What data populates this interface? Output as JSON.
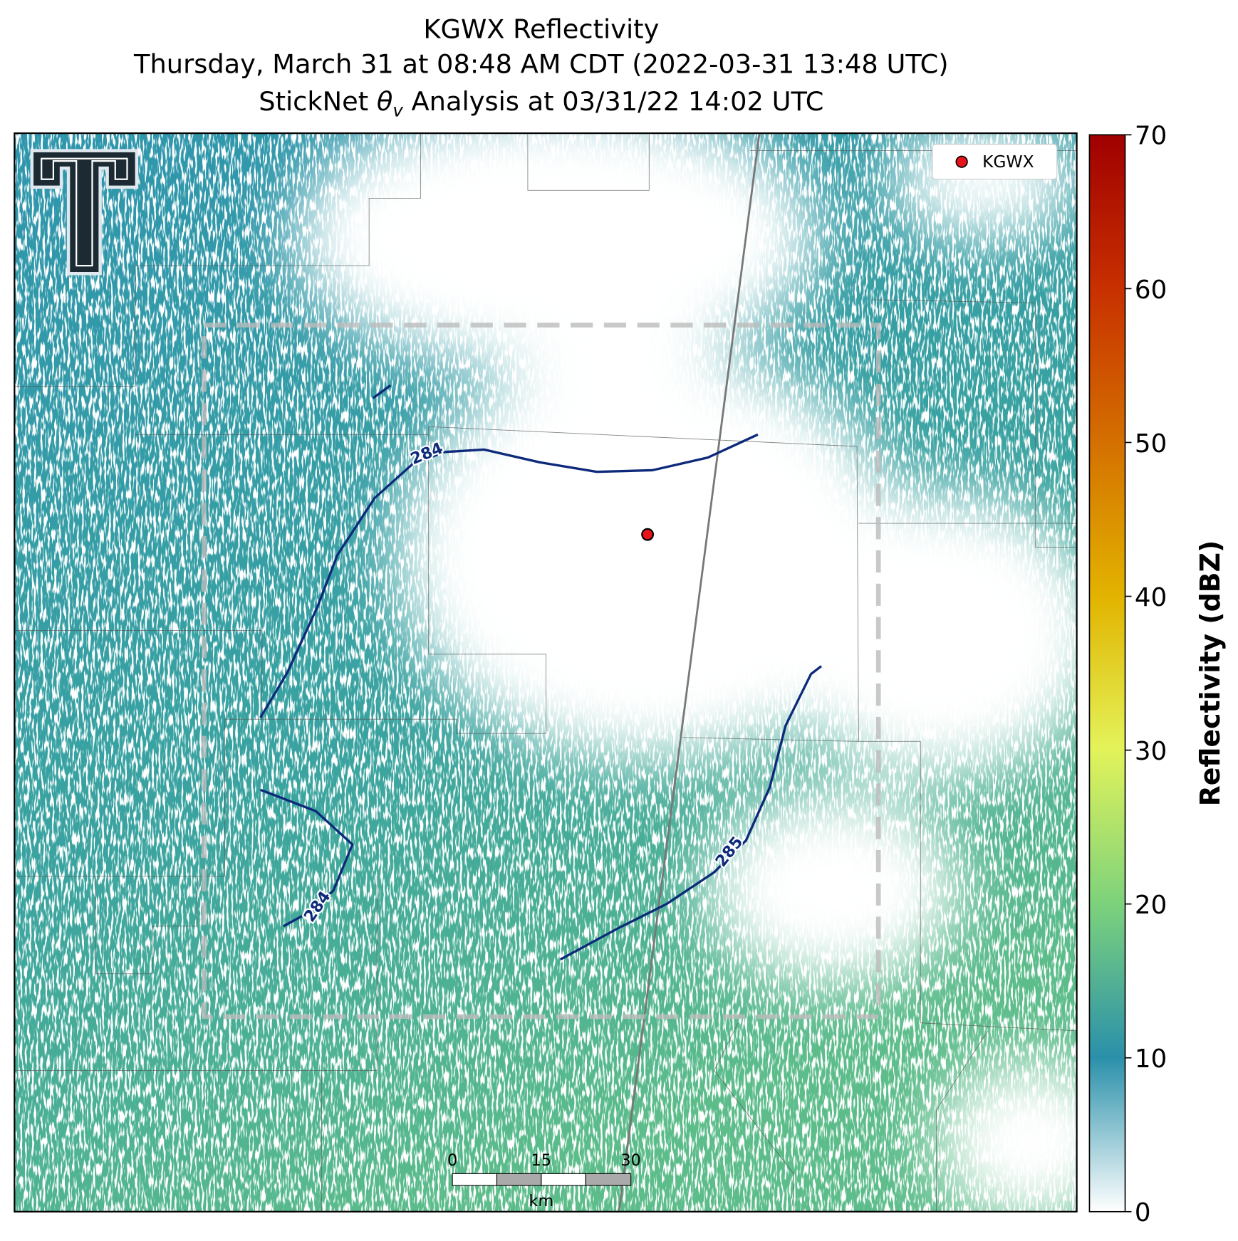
{
  "header": {
    "title": "KGWX Reflectivity",
    "subtitle": "Thursday, March 31 at 08:48 AM CDT (2022-03-31 13:48 UTC)",
    "analysis_line": {
      "before": "StickNet ",
      "symbol": "θ",
      "subscript": "v",
      "after": " Analysis at 03/31/22 14:02 UTC"
    }
  },
  "legend": {
    "label": "KGWX"
  },
  "contours": [
    {
      "label": 284
    },
    {
      "label": 284
    },
    {
      "label": 285
    }
  ],
  "scale_bar": {
    "ticks": [
      "0",
      "15",
      "30"
    ],
    "unit": "km"
  },
  "colorbar": {
    "label": "Reflectivity (dBZ)",
    "range": [
      0,
      70
    ],
    "ticks": [
      0,
      10,
      20,
      30,
      40,
      50,
      60,
      70
    ]
  }
}
